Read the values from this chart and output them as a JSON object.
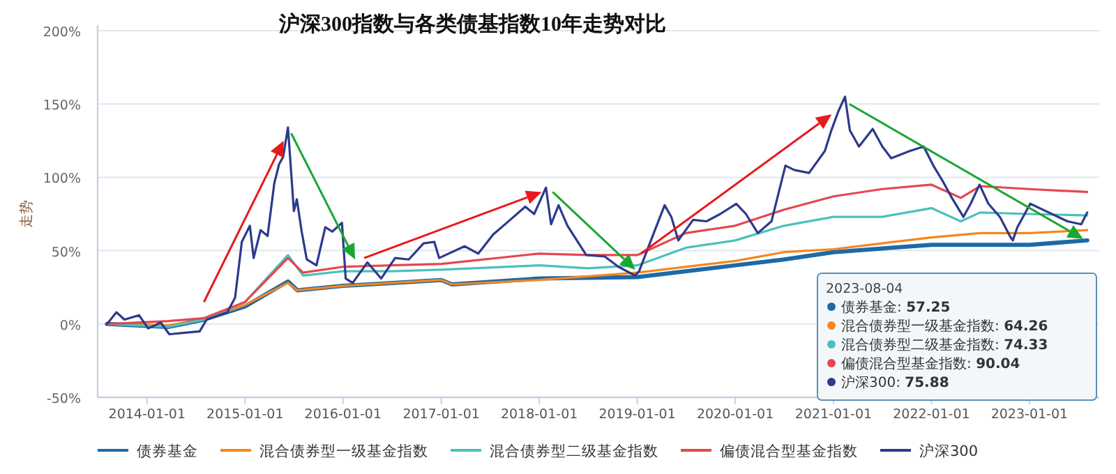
{
  "chart_data": {
    "type": "line",
    "title": "沪深300指数与各类债基指数10年走势对比",
    "ylabel": "走势",
    "xlim": [
      "2013-07-01",
      "2023-09-18"
    ],
    "xticks": [
      "2014-01-01",
      "2015-01-01",
      "2016-01-01",
      "2017-01-01",
      "2018-01-01",
      "2019-01-01",
      "2020-01-01",
      "2021-01-01",
      "2022-01-01",
      "2023-01-01"
    ],
    "ylim": [
      -50,
      200
    ],
    "yticks": [
      {
        "value": -50,
        "label": "-50%"
      },
      {
        "value": 0,
        "label": "0%"
      },
      {
        "value": 50,
        "label": "50%"
      },
      {
        "value": 100,
        "label": "100%"
      },
      {
        "value": 150,
        "label": "150%"
      },
      {
        "value": 200,
        "label": "200%"
      }
    ],
    "grid": "y",
    "legend": "bottom",
    "marker": "none",
    "line_style": "solid",
    "series": [
      {
        "name": "债券基金",
        "color": "#1c6aa8",
        "x": [
          "2013-08-05",
          "2014-03-20",
          "2014-08-01",
          "2015-01-01",
          "2015-06-10",
          "2015-07-15",
          "2016-01-01",
          "2017-01-01",
          "2017-02-10",
          "2018-01-01",
          "2019-01-01",
          "2020-01-01",
          "2020-07-01",
          "2021-01-01",
          "2022-01-01",
          "2023-01-01",
          "2023-08-04"
        ],
        "values": [
          0,
          -2,
          3,
          12,
          29,
          23,
          26,
          30,
          27,
          31,
          32,
          40,
          44,
          49,
          54,
          54,
          57
        ]
      },
      {
        "name": "混合债券型一级基金指数",
        "color": "#f7861c",
        "x": [
          "2013-08-05",
          "2014-03-20",
          "2014-08-01",
          "2015-01-01",
          "2015-06-10",
          "2015-07-15",
          "2016-01-01",
          "2017-01-01",
          "2017-02-10",
          "2018-01-01",
          "2019-01-01",
          "2020-01-01",
          "2020-07-01",
          "2021-01-01",
          "2021-07-01",
          "2022-01-01",
          "2022-07-01",
          "2023-01-01",
          "2023-08-04"
        ],
        "values": [
          0,
          -1,
          3,
          13,
          28,
          23,
          26,
          30,
          27,
          30,
          35,
          43,
          49,
          51,
          55,
          59,
          62,
          62,
          64
        ]
      },
      {
        "name": "混合债券型二级基金指数",
        "color": "#4cc0bd",
        "x": [
          "2013-08-05",
          "2014-03-20",
          "2014-08-01",
          "2015-01-01",
          "2015-06-10",
          "2015-08-05",
          "2016-01-01",
          "2016-07-01",
          "2017-01-01",
          "2018-01-01",
          "2018-07-01",
          "2019-01-01",
          "2019-07-01",
          "2020-01-01",
          "2020-07-01",
          "2021-01-01",
          "2021-07-01",
          "2022-01-01",
          "2022-04-20",
          "2022-07-01",
          "2023-01-01",
          "2023-08-04"
        ],
        "values": [
          0,
          -2,
          3,
          15,
          47,
          33,
          36,
          36,
          37,
          40,
          38,
          40,
          52,
          57,
          67,
          73,
          73,
          79,
          70,
          76,
          75,
          74
        ]
      },
      {
        "name": "偏债混合型基金指数",
        "color": "#e5474f",
        "x": [
          "2013-08-05",
          "2014-03-20",
          "2014-08-01",
          "2015-01-01",
          "2015-06-10",
          "2015-08-05",
          "2016-01-01",
          "2016-07-01",
          "2017-01-01",
          "2018-01-01",
          "2018-07-01",
          "2019-01-01",
          "2019-07-01",
          "2020-01-01",
          "2020-07-01",
          "2021-01-01",
          "2021-07-01",
          "2022-01-01",
          "2022-04-20",
          "2022-07-01",
          "2023-01-01",
          "2023-08-04"
        ],
        "values": [
          0,
          2,
          4,
          15,
          45,
          35,
          39,
          40,
          41,
          48,
          47,
          47,
          62,
          67,
          78,
          87,
          92,
          95,
          86,
          94,
          92,
          90
        ]
      },
      {
        "name": "沪深300",
        "color": "#2d3a8c",
        "x": [
          "2013-08-05",
          "2013-09-09",
          "2013-10-09",
          "2013-12-02",
          "2014-01-05",
          "2014-02-21",
          "2014-03-25",
          "2014-07-16",
          "2014-08-11",
          "2014-10-27",
          "2014-11-25",
          "2014-12-20",
          "2015-01-19",
          "2015-02-02",
          "2015-02-28",
          "2015-03-26",
          "2015-04-20",
          "2015-05-08",
          "2015-05-23",
          "2015-06-10",
          "2015-07-02",
          "2015-07-13",
          "2015-07-31",
          "2015-08-19",
          "2015-09-24",
          "2015-10-27",
          "2015-11-22",
          "2015-12-28",
          "2016-01-11",
          "2016-02-06",
          "2016-04-01",
          "2016-05-22",
          "2016-07-13",
          "2016-09-02",
          "2016-10-27",
          "2016-12-06",
          "2016-12-24",
          "2017-03-29",
          "2017-05-19",
          "2017-07-13",
          "2017-09-02",
          "2017-11-10",
          "2017-12-13",
          "2018-01-26",
          "2018-02-14",
          "2018-03-14",
          "2018-04-16",
          "2018-06-25",
          "2018-09-02",
          "2018-10-23",
          "2018-12-24",
          "2019-01-08",
          "2019-02-21",
          "2019-04-13",
          "2019-05-08",
          "2019-06-03",
          "2019-07-28",
          "2019-09-16",
          "2019-11-06",
          "2020-01-05",
          "2020-02-10",
          "2020-03-25",
          "2020-05-15",
          "2020-07-06",
          "2020-08-08",
          "2020-10-02",
          "2020-11-30",
          "2020-12-24",
          "2021-01-19",
          "2021-02-13",
          "2021-03-03",
          "2021-04-06",
          "2021-05-27",
          "2021-07-02",
          "2021-08-04",
          "2021-10-13",
          "2021-12-03",
          "2022-01-08",
          "2022-02-10",
          "2022-03-18",
          "2022-04-30",
          "2022-05-27",
          "2022-06-29",
          "2022-08-01",
          "2022-09-13",
          "2022-10-20",
          "2022-10-31",
          "2022-11-17",
          "2023-01-04",
          "2023-03-14",
          "2023-05-23",
          "2023-07-13",
          "2023-08-04"
        ],
        "values": [
          0,
          8,
          3,
          6,
          -3,
          1,
          -7,
          -5,
          3,
          8,
          18,
          56,
          67,
          45,
          64,
          60,
          96,
          109,
          114,
          134,
          77,
          85,
          63,
          44,
          40,
          66,
          63,
          69,
          31,
          28,
          42,
          31,
          45,
          44,
          55,
          56,
          45,
          53,
          48,
          61,
          69,
          80,
          75,
          93,
          68,
          81,
          67,
          47,
          46,
          39,
          33,
          36,
          57,
          81,
          73,
          57,
          71,
          70,
          75,
          82,
          75,
          62,
          70,
          108,
          105,
          103,
          118,
          132,
          145,
          155,
          132,
          121,
          133,
          121,
          113,
          118,
          121,
          108,
          98,
          86,
          73,
          82,
          95,
          82,
          73,
          60,
          57,
          66,
          82,
          76,
          70,
          68,
          76
        ]
      }
    ],
    "annotations": [
      "2023-08-04",
      "债券基金: **57.25**",
      "混合债券型一级基金指数: **64.26**",
      "混合债券型二级基金指数: **74.33**",
      "偏债混合型基金指数: **90.04**",
      "沪深300: **75.88**"
    ]
  }
}
